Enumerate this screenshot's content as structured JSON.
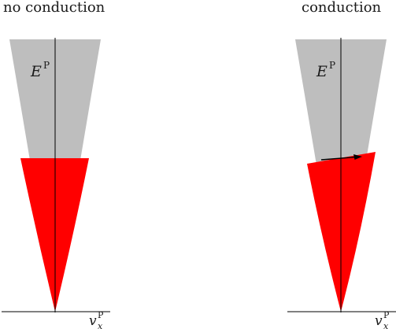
{
  "left_panel": {
    "title": "no conduction",
    "energy_label": "E",
    "energy_superscript": "P",
    "axis_label": "v",
    "axis_subscript": "x",
    "axis_superscript": "P"
  },
  "right_panel": {
    "title": "conduction",
    "energy_label": "E",
    "energy_superscript": "P",
    "axis_label": "v",
    "axis_subscript": "x",
    "axis_superscript": "P"
  },
  "colors": {
    "unfilled_states": "#bebebe",
    "filled_states": "#ff0000",
    "axes": "#000000"
  }
}
